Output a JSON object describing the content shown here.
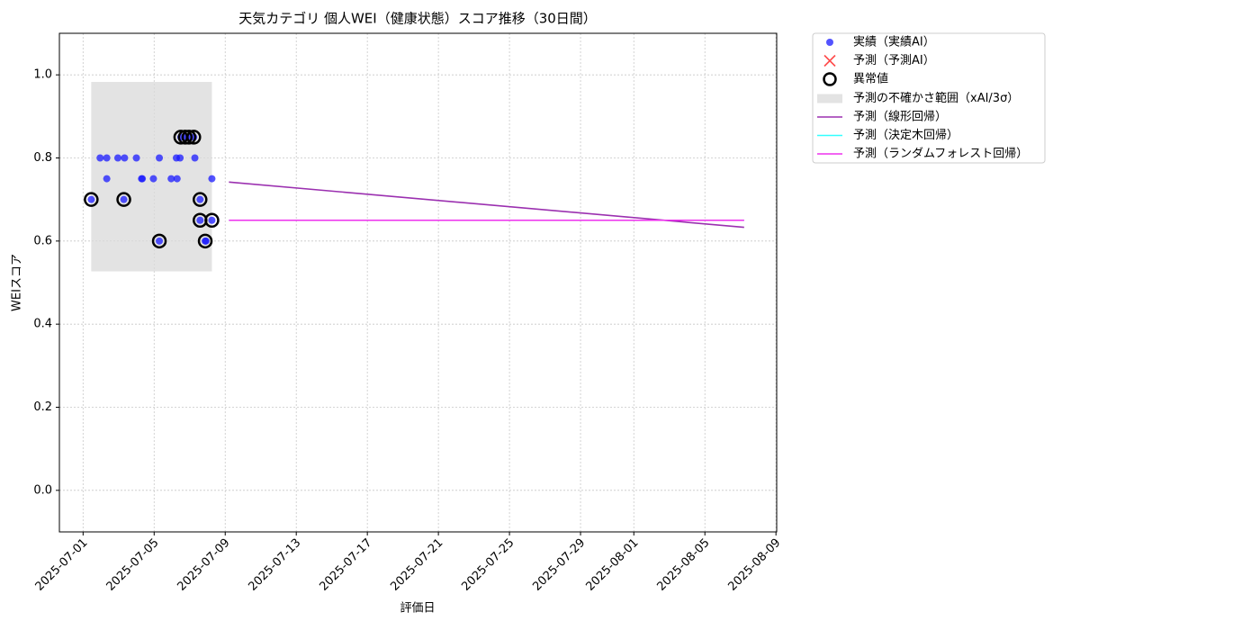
{
  "chart_data": {
    "type": "scatter",
    "title": "天気カテゴリ 個人WEI（健康状態）スコア推移（30日間）",
    "xlabel": "評価日",
    "ylabel": "WEIスコア",
    "xlim": [
      "2025-06-29T16:00",
      "2025-08-09T01:00"
    ],
    "ylim": [
      -0.1,
      1.1
    ],
    "xticks": [
      "2025-07-01",
      "2025-07-05",
      "2025-07-09",
      "2025-07-13",
      "2025-07-17",
      "2025-07-21",
      "2025-07-25",
      "2025-07-29",
      "2025-08-01",
      "2025-08-05",
      "2025-08-09"
    ],
    "yticks": [
      {
        "value": 0,
        "label": "0.0"
      },
      {
        "value": 0.2,
        "label": "0.2"
      },
      {
        "value": 0.4,
        "label": "0.4"
      },
      {
        "value": 0.6,
        "label": "0.6"
      },
      {
        "value": 0.8,
        "label": "0.8"
      },
      {
        "value": 1,
        "label": "1.0"
      }
    ],
    "grid": true,
    "legend": "outside-upper-right",
    "series": [
      {
        "name": "実績（実績AI）",
        "kind": "scatter",
        "color": "#1a1aff",
        "x": [
          "2025-07-01T11:00",
          "2025-07-01T23:00",
          "2025-07-02T08:00",
          "2025-07-02T08:00",
          "2025-07-02T23:00",
          "2025-07-03T07:00",
          "2025-07-03T08:00",
          "2025-07-04T00:00",
          "2025-07-04T07:00",
          "2025-07-04T08:00",
          "2025-07-04T23:00",
          "2025-07-05T07:00",
          "2025-07-05T07:00",
          "2025-07-05T23:00",
          "2025-07-06T06:00",
          "2025-07-06T07:00",
          "2025-07-06T11:00",
          "2025-07-06T12:00",
          "2025-07-06T18:00",
          "2025-07-06T23:00",
          "2025-07-07T05:30",
          "2025-07-07T07:00",
          "2025-07-07T14:00",
          "2025-07-07T14:00",
          "2025-07-07T21:00",
          "2025-07-07T22:00",
          "2025-07-08T06:00",
          "2025-07-08T06:00"
        ],
        "values": [
          0.7,
          0.8,
          0.8,
          0.75,
          0.8,
          0.7,
          0.8,
          0.8,
          0.75,
          0.75,
          0.75,
          0.8,
          0.6,
          0.75,
          0.8,
          0.75,
          0.8,
          0.85,
          0.85,
          0.85,
          0.85,
          0.8,
          0.7,
          0.65,
          0.6,
          0.6,
          0.75,
          0.65
        ]
      },
      {
        "name": "予測（予測AI）",
        "kind": "cross",
        "color": "#ff2020",
        "x": [],
        "values": []
      },
      {
        "name": "異常値",
        "kind": "ring",
        "color": "#000000",
        "x": [
          "2025-07-01T11:00",
          "2025-07-03T07:00",
          "2025-07-05T07:00",
          "2025-07-06T12:00",
          "2025-07-06T18:00",
          "2025-07-06T23:00",
          "2025-07-07T05:30",
          "2025-07-07T14:00",
          "2025-07-07T14:00",
          "2025-07-07T21:00",
          "2025-07-08T06:00"
        ],
        "values": [
          0.7,
          0.7,
          0.6,
          0.85,
          0.85,
          0.85,
          0.85,
          0.7,
          0.65,
          0.6,
          0.65
        ]
      },
      {
        "name": "予測の不確かさ範囲（xAI/3σ）",
        "kind": "band",
        "color": "#d9d9d9",
        "x": [
          "2025-07-01T11:00",
          "2025-07-08T06:00"
        ],
        "lower": 0.527,
        "upper": 0.983
      },
      {
        "name": "予測（線形回帰）",
        "kind": "line",
        "color": "#9b30b0",
        "x": [
          "2025-07-09T05:00",
          "2025-08-07T05:00"
        ],
        "values": [
          0.742,
          0.633
        ]
      },
      {
        "name": "予測（決定木回帰）",
        "kind": "line",
        "color": "#33ffff",
        "x": [
          "2025-07-09T05:00",
          "2025-08-07T05:00"
        ],
        "values": [
          0.65,
          0.65
        ]
      },
      {
        "name": "予測（ランダムフォレスト回帰）",
        "kind": "line",
        "color": "#ee30ee",
        "x": [
          "2025-07-09T05:00",
          "2025-08-07T05:00"
        ],
        "values": [
          0.65,
          0.65
        ]
      }
    ]
  }
}
